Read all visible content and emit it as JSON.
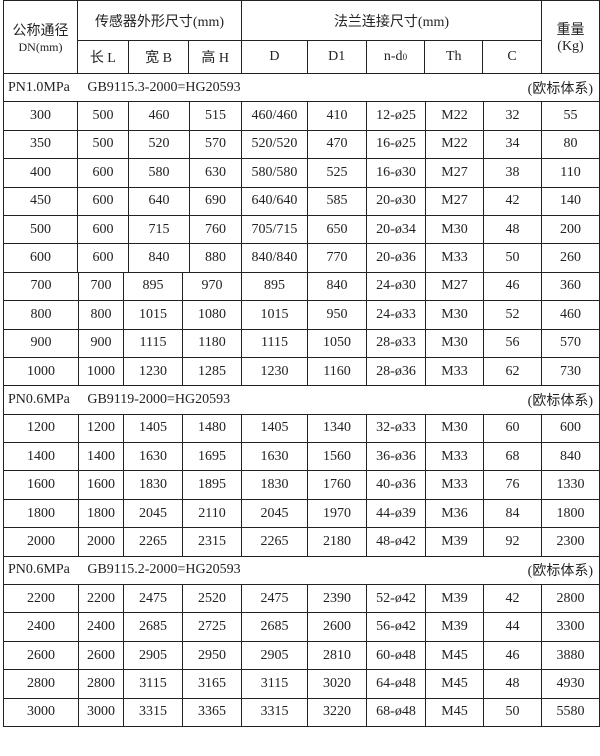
{
  "header": {
    "dn": "公称通径",
    "dn_unit": "DN(mm)",
    "sensor": "传感器外形尺寸(mm)",
    "flange": "法兰连接尺寸(mm)",
    "weight": "重量",
    "weight_unit": "(Kg)",
    "cols": [
      "长 L",
      "宽 B",
      "高 H",
      "D",
      "D1",
      "n-d",
      "Th",
      "C"
    ],
    "nd_sub": "0"
  },
  "sections": [
    {
      "pn": "PN1.0MPa",
      "standard": "GB9115.3-2000=HG20593",
      "system": "(欧标体系)",
      "rows": [
        [
          "300",
          "500",
          "460",
          "515",
          "460/460",
          "410",
          "12-ø25",
          "M22",
          "32",
          "55"
        ],
        [
          "350",
          "500",
          "520",
          "570",
          "520/520",
          "470",
          "16-ø25",
          "M22",
          "34",
          "80"
        ],
        [
          "400",
          "600",
          "580",
          "630",
          "580/580",
          "525",
          "16-ø30",
          "M27",
          "38",
          "110"
        ],
        [
          "450",
          "600",
          "640",
          "690",
          "640/640",
          "585",
          "20-ø30",
          "M27",
          "42",
          "140"
        ],
        [
          "500",
          "600",
          "715",
          "760",
          "705/715",
          "650",
          "20-ø34",
          "M30",
          "48",
          "200"
        ],
        [
          "600",
          "600",
          "840",
          "880",
          "840/840",
          "770",
          "20-ø36",
          "M33",
          "50",
          "260"
        ],
        [
          "700",
          "700",
          "895",
          "970",
          "895",
          "840",
          "24-ø30",
          "M27",
          "46",
          "360"
        ],
        [
          "800",
          "800",
          "1015",
          "1080",
          "1015",
          "950",
          "24-ø33",
          "M30",
          "52",
          "460"
        ],
        [
          "900",
          "900",
          "1115",
          "1180",
          "1115",
          "1050",
          "28-ø33",
          "M30",
          "56",
          "570"
        ],
        [
          "1000",
          "1000",
          "1230",
          "1285",
          "1230",
          "1160",
          "28-ø36",
          "M33",
          "62",
          "730"
        ]
      ]
    },
    {
      "pn": "PN0.6MPa",
      "standard": "GB9119-2000=HG20593",
      "system": "(欧标体系)",
      "rows": [
        [
          "1200",
          "1200",
          "1405",
          "1480",
          "1405",
          "1340",
          "32-ø33",
          "M30",
          "60",
          "600"
        ],
        [
          "1400",
          "1400",
          "1630",
          "1695",
          "1630",
          "1560",
          "36-ø36",
          "M33",
          "68",
          "840"
        ],
        [
          "1600",
          "1600",
          "1830",
          "1895",
          "1830",
          "1760",
          "40-ø36",
          "M33",
          "76",
          "1330"
        ],
        [
          "1800",
          "1800",
          "2045",
          "2110",
          "2045",
          "1970",
          "44-ø39",
          "M36",
          "84",
          "1800"
        ],
        [
          "2000",
          "2000",
          "2265",
          "2315",
          "2265",
          "2180",
          "48-ø42",
          "M39",
          "92",
          "2300"
        ]
      ]
    },
    {
      "pn": "PN0.6MPa",
      "standard": "GB9115.2-2000=HG20593",
      "system": "(欧标体系)",
      "rows": [
        [
          "2200",
          "2200",
          "2475",
          "2520",
          "2475",
          "2390",
          "52-ø42",
          "M39",
          "42",
          "2800"
        ],
        [
          "2400",
          "2400",
          "2685",
          "2725",
          "2685",
          "2600",
          "56-ø42",
          "M39",
          "44",
          "3300"
        ],
        [
          "2600",
          "2600",
          "2905",
          "2950",
          "2905",
          "2810",
          "60-ø48",
          "M45",
          "46",
          "3880"
        ],
        [
          "2800",
          "2800",
          "3115",
          "3165",
          "3115",
          "3020",
          "64-ø48",
          "M45",
          "48",
          "4930"
        ],
        [
          "3000",
          "3000",
          "3315",
          "3365",
          "3315",
          "3220",
          "68-ø48",
          "M45",
          "50",
          "5580"
        ]
      ]
    }
  ]
}
